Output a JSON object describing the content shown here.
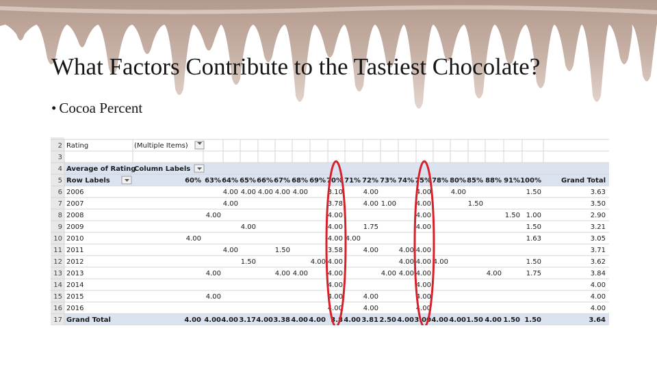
{
  "title": "What Factors Contribute to the Tastiest Chocolate?",
  "bullet": "Cocoa Percent",
  "colors": {
    "drip": "#c5aea3",
    "highlight": "#d6202a",
    "header_band": "#dbe3f1"
  },
  "pivot": {
    "filter_label": "Rating",
    "filter_value": "(Multiple Items)",
    "value_label": "Average of Rating",
    "column_labels": "Column Labels",
    "row_labels": "Row Labels",
    "row_numbers": [
      "2",
      "3",
      "4",
      "5",
      "6",
      "7",
      "8",
      "9",
      "10",
      "11",
      "12",
      "13",
      "14",
      "15",
      "16",
      "17"
    ],
    "columns": [
      "60%",
      "63%",
      "64%",
      "65%",
      "66%",
      "67%",
      "68%",
      "69%",
      "70%",
      "71%",
      "72%",
      "73%",
      "74%",
      "75%",
      "78%",
      "80%",
      "85%",
      "88%",
      "91%",
      "100%",
      "Grand Total"
    ],
    "rows": [
      {
        "label": "2006",
        "cells": [
          "",
          "",
          "4.00",
          "4.00",
          "4.00",
          "4.00",
          "4.00",
          "",
          "3.10",
          "",
          "4.00",
          "",
          "",
          "4.00",
          "",
          "4.00",
          "",
          "",
          "",
          "1.50",
          "3.63"
        ]
      },
      {
        "label": "2007",
        "cells": [
          "",
          "",
          "4.00",
          "",
          "",
          "",
          "",
          "",
          "3.78",
          "",
          "4.00",
          "1.00",
          "",
          "4.00",
          "",
          "",
          "1.50",
          "",
          "",
          "",
          "3.50"
        ]
      },
      {
        "label": "2008",
        "cells": [
          "",
          "4.00",
          "",
          "",
          "",
          "",
          "",
          "",
          "4.00",
          "",
          "",
          "",
          "",
          "4.00",
          "",
          "",
          "",
          "",
          "1.50",
          "1.00",
          "2.90"
        ]
      },
      {
        "label": "2009",
        "cells": [
          "",
          "",
          "",
          "4.00",
          "",
          "",
          "",
          "",
          "4.00",
          "",
          "1.75",
          "",
          "",
          "4.00",
          "",
          "",
          "",
          "",
          "",
          "1.50",
          "3.21"
        ]
      },
      {
        "label": "2010",
        "cells": [
          "4.00",
          "",
          "",
          "",
          "",
          "",
          "",
          "",
          "4.00",
          "4.00",
          "",
          "",
          "",
          "",
          "",
          "",
          "",
          "",
          "",
          "1.63",
          "3.05"
        ]
      },
      {
        "label": "2011",
        "cells": [
          "",
          "",
          "4.00",
          "",
          "",
          "1.50",
          "",
          "",
          "3.58",
          "",
          "4.00",
          "",
          "4.00",
          "4.00",
          "",
          "",
          "",
          "",
          "",
          "",
          "3.71"
        ]
      },
      {
        "label": "2012",
        "cells": [
          "",
          "",
          "",
          "1.50",
          "",
          "",
          "",
          "4.00",
          "4.00",
          "",
          "",
          "",
          "4.00",
          "4.00",
          "4.00",
          "",
          "",
          "",
          "",
          "1.50",
          "3.62"
        ]
      },
      {
        "label": "2013",
        "cells": [
          "",
          "4.00",
          "",
          "",
          "",
          "4.00",
          "4.00",
          "",
          "4.00",
          "",
          "",
          "4.00",
          "4.00",
          "4.00",
          "",
          "",
          "",
          "4.00",
          "",
          "1.75",
          "3.84"
        ]
      },
      {
        "label": "2014",
        "cells": [
          "",
          "",
          "",
          "",
          "",
          "",
          "",
          "",
          "4.00",
          "",
          "",
          "",
          "",
          "4.00",
          "",
          "",
          "",
          "",
          "",
          "",
          "4.00"
        ]
      },
      {
        "label": "2015",
        "cells": [
          "",
          "4.00",
          "",
          "",
          "",
          "",
          "",
          "",
          "4.00",
          "",
          "4.00",
          "",
          "",
          "4.00",
          "",
          "",
          "",
          "",
          "",
          "",
          "4.00"
        ]
      },
      {
        "label": "2016",
        "cells": [
          "",
          "",
          "",
          "",
          "",
          "",
          "",
          "",
          "4.00",
          "",
          "4.00",
          "",
          "",
          "4.00",
          "",
          "",
          "",
          "",
          "",
          "",
          "4.00"
        ]
      }
    ],
    "grand_total": {
      "label": "Grand Total",
      "cells": [
        "4.00",
        "4.00",
        "4.00",
        "3.17",
        "4.00",
        "3.38",
        "4.00",
        "4.00",
        "3.8",
        "4.00",
        "3.81",
        "2.50",
        "4.00",
        "3.00",
        "4.00",
        "4.00",
        "1.50",
        "4.00",
        "1.50",
        "1.50",
        "3.64"
      ]
    }
  }
}
